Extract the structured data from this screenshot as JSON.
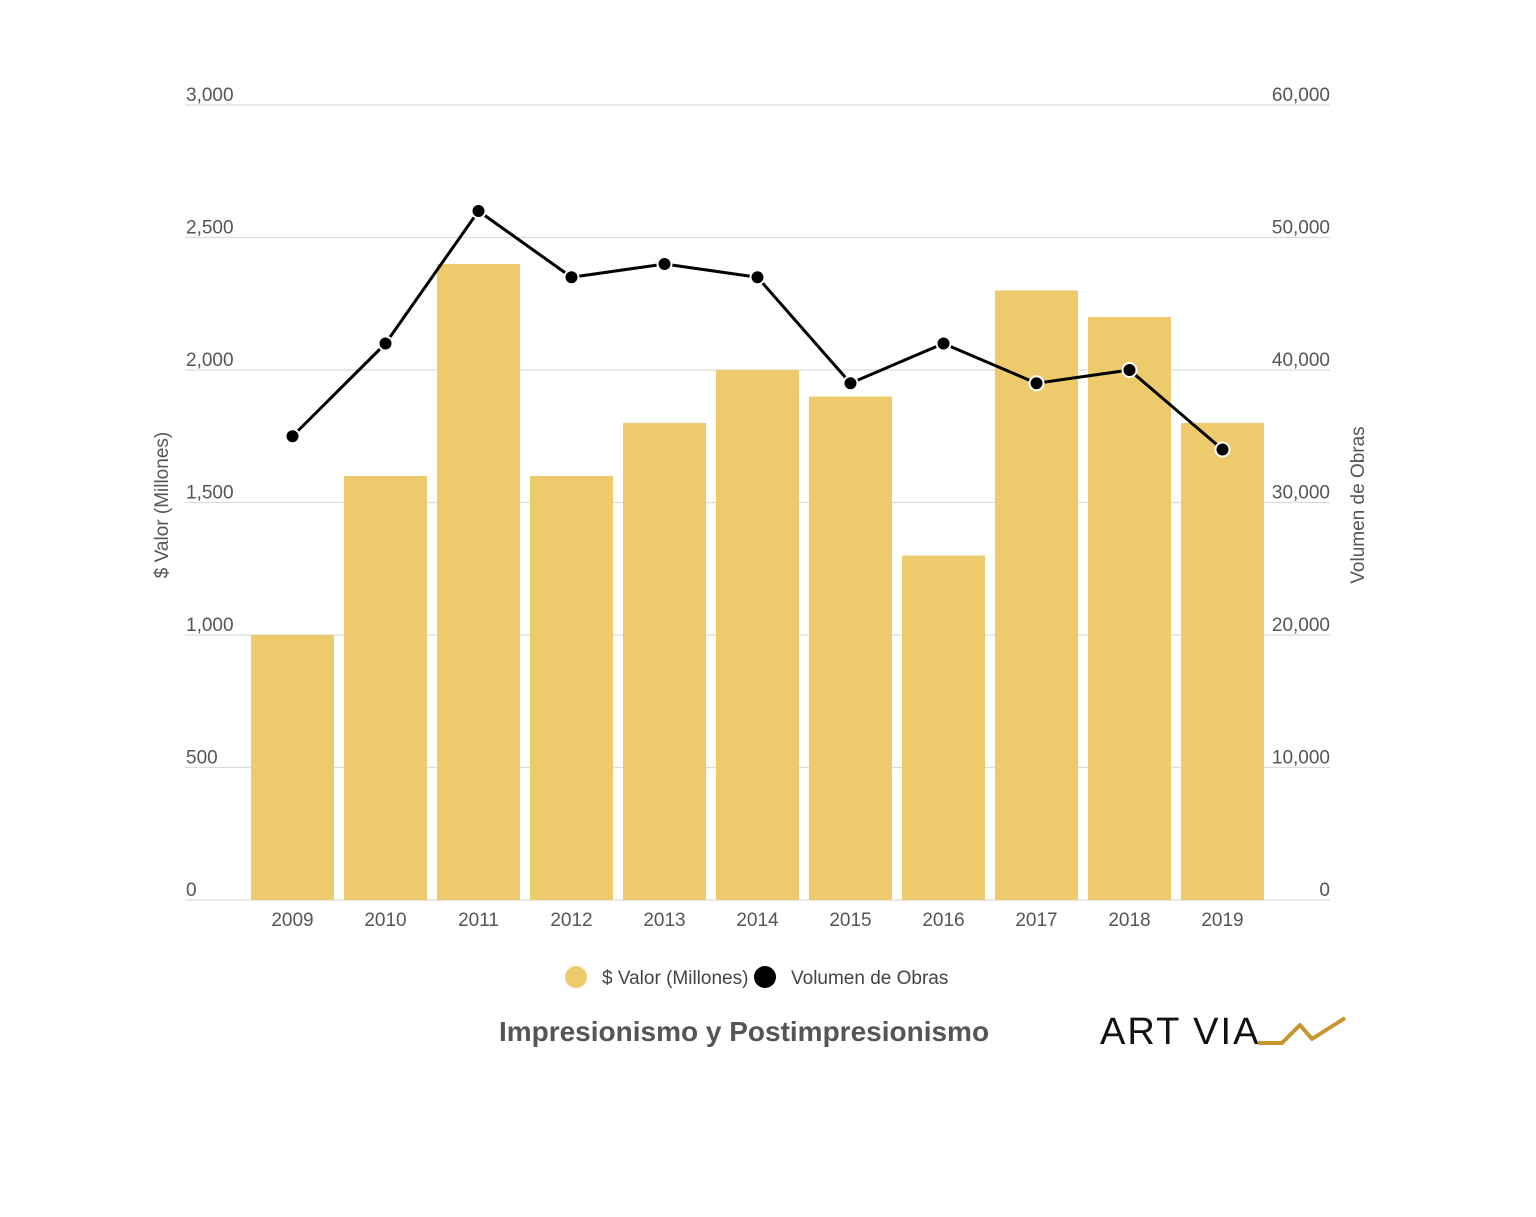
{
  "colors": {
    "bar": "#EDCA6B",
    "line": "#000000",
    "grid": "#DCDCDC",
    "text": "#555555",
    "logo_accent": "#C9962E"
  },
  "chart_data": {
    "type": "bar",
    "title": "Impresionismo y Postimpresionismo",
    "categories": [
      "2009",
      "2010",
      "2011",
      "2012",
      "2013",
      "2014",
      "2015",
      "2016",
      "2017",
      "2018",
      "2019"
    ],
    "series": [
      {
        "name": "$ Valor (Millones)",
        "type": "bar",
        "axis": "left",
        "values": [
          1000,
          1600,
          2400,
          1600,
          1800,
          2000,
          1900,
          1300,
          2300,
          2200,
          1800
        ]
      },
      {
        "name": "Volumen de Obras",
        "type": "line",
        "axis": "right",
        "values": [
          35000,
          42000,
          52000,
          47000,
          48000,
          47000,
          39000,
          42000,
          39000,
          40000,
          34000
        ]
      }
    ],
    "ylabel": "$ Valor  (Millones)",
    "y2label": "Volumen de Obras",
    "ylim": [
      0,
      3000
    ],
    "y2lim": [
      0,
      60000
    ],
    "yticks": [
      "0",
      "500",
      "1,000",
      "1,500",
      "2,000",
      "2,500",
      "3,000"
    ],
    "y2ticks": [
      "0",
      "10,000",
      "20,000",
      "30,000",
      "40,000",
      "50,000",
      "60,000"
    ],
    "grid": true,
    "legend_position": "bottom"
  },
  "legend": {
    "items": [
      "$ Valor (Millones)",
      "Volumen de Obras"
    ]
  },
  "logo": {
    "text": "ART VIA"
  }
}
